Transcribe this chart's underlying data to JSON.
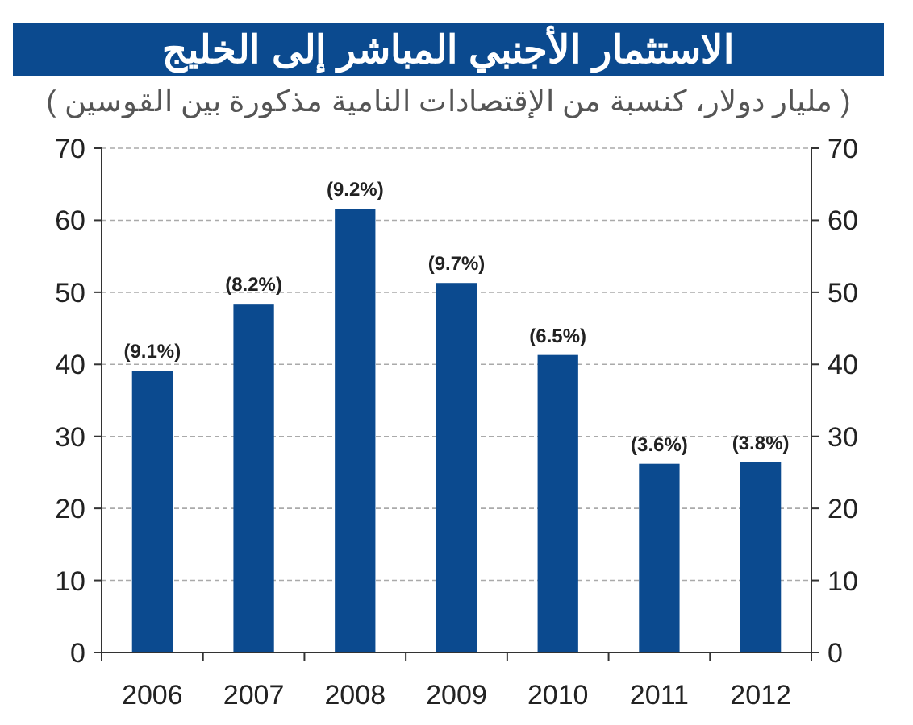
{
  "chart_data": {
    "type": "bar",
    "title": "الاستثمار الأجنبي المباشر إلى الخليج",
    "subtitle": "( مليار دولار، كنسبة من الإقتصادات النامية مذكورة بين القوسين )",
    "categories": [
      "2006",
      "2007",
      "2008",
      "2009",
      "2010",
      "2011",
      "2012"
    ],
    "values": [
      39.1,
      48.4,
      61.6,
      51.3,
      41.3,
      26.2,
      26.4
    ],
    "annotations": [
      {
        "text": "(9.1%)",
        "x": "2006",
        "y": 39.1
      },
      {
        "text": "(8.2%)",
        "x": "2007",
        "y": 48.4
      },
      {
        "text": "(9.2%)",
        "x": "2008",
        "y": 61.6
      },
      {
        "text": "(9.7%)",
        "x": "2009",
        "y": 51.3
      },
      {
        "text": "(6.5%)",
        "x": "2010",
        "y": 41.3
      },
      {
        "text": "(3.6%)",
        "x": "2011",
        "y": 26.2
      },
      {
        "text": "(3.8%)",
        "x": "2012",
        "y": 26.4
      }
    ],
    "color": "#0b4a8f",
    "ylim": [
      0,
      70
    ],
    "yticks": [
      0,
      10,
      20,
      30,
      40,
      50,
      60,
      70
    ],
    "y2lim": [
      0,
      70
    ],
    "y2ticks": [
      0,
      10,
      20,
      30,
      40,
      50,
      60,
      70
    ],
    "grid": "y"
  }
}
